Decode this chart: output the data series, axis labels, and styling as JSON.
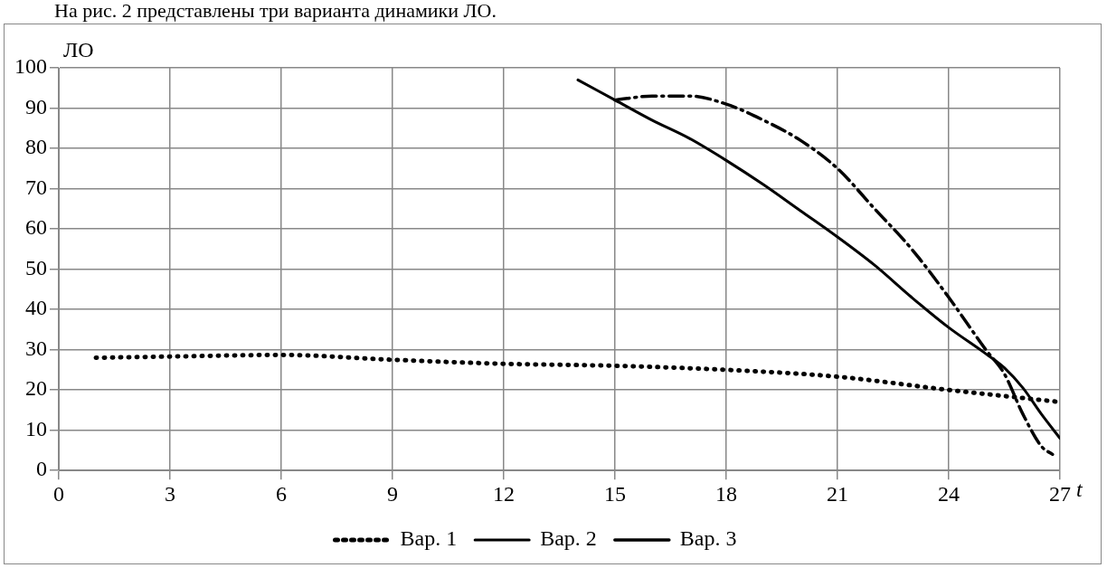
{
  "chart_data": {
    "type": "line",
    "title": "На рис. 2 представлены три варианта динамики ЛО.",
    "xlabel": "t",
    "ylabel": "ЛО",
    "xlim": [
      0,
      27
    ],
    "xticks": [
      0,
      3,
      6,
      9,
      12,
      15,
      18,
      21,
      24,
      27
    ],
    "ylim": [
      0,
      100
    ],
    "yticks": [
      0,
      10,
      20,
      30,
      40,
      50,
      60,
      70,
      80,
      90,
      100
    ],
    "grid": true,
    "legend": "bottom",
    "marker": "none",
    "series": [
      {
        "name": "Вар. 1",
        "color": "#000000",
        "line_style": "dotted",
        "x": [
          1,
          3,
          6,
          9,
          12,
          15,
          18,
          21,
          24,
          26,
          27
        ],
        "values": [
          28,
          28.3,
          28.7,
          27.5,
          26.5,
          26,
          25,
          23.3,
          20,
          18,
          17
        ]
      },
      {
        "name": "Вар. 2",
        "color": "#000000",
        "line_style": "solid",
        "x": [
          14,
          15,
          16,
          17,
          18,
          19,
          20,
          21,
          22,
          23,
          24,
          25,
          25.5,
          26,
          26.5,
          27
        ],
        "values": [
          97,
          92,
          87,
          82.5,
          77,
          71,
          64.5,
          58,
          51,
          43,
          35.5,
          29,
          25.5,
          20.5,
          14,
          8
        ]
      },
      {
        "name": "Вар. 3",
        "color": "#000000",
        "line_style": "dashed",
        "x": [
          15,
          16,
          17,
          18,
          19,
          20,
          21,
          22,
          23,
          24,
          25,
          25.5,
          26,
          26.5,
          26.8
        ],
        "values": [
          92,
          93,
          93,
          91,
          87,
          82,
          75,
          65,
          55,
          43,
          30,
          24,
          14,
          6,
          4
        ]
      }
    ]
  }
}
